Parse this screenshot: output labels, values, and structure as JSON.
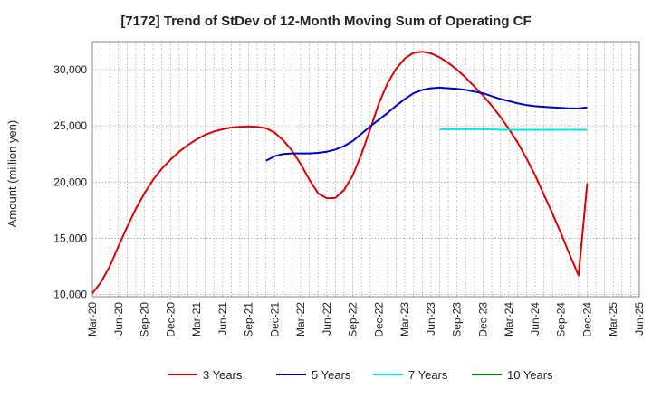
{
  "chart_data": {
    "type": "line",
    "title": "[7172]  Trend of StDev of 12-Month Moving Sum of Operating CF",
    "xlabel": "",
    "ylabel": "Amount (million yen)",
    "ylim": [
      9800,
      32500
    ],
    "yticks": [
      10000,
      15000,
      20000,
      25000,
      30000
    ],
    "ytick_labels": [
      "10,000",
      "15,000",
      "20,000",
      "25,000",
      "30,000"
    ],
    "x_tick_labels": [
      "Mar-20",
      "Jun-20",
      "Sep-20",
      "Dec-20",
      "Mar-21",
      "Jun-21",
      "Sep-21",
      "Dec-21",
      "Mar-22",
      "Jun-22",
      "Sep-22",
      "Dec-22",
      "Mar-23",
      "Jun-23",
      "Sep-23",
      "Dec-23",
      "Mar-24",
      "Jun-24",
      "Sep-24",
      "Dec-24",
      "Mar-25",
      "Jun-25"
    ],
    "x_range_months": [
      0,
      63
    ],
    "grid": true,
    "legend_position": "bottom",
    "series": [
      {
        "name": "3 Years",
        "color": "#e00000",
        "x": [
          0,
          1,
          2,
          3,
          4,
          5,
          6,
          7,
          8,
          9,
          10,
          11,
          12,
          13,
          14,
          15,
          16,
          17,
          18,
          19,
          20,
          21,
          22,
          23,
          24,
          25,
          26,
          27,
          28,
          29,
          30,
          31,
          32,
          33,
          34,
          35,
          36,
          37,
          38,
          39,
          40,
          41,
          42,
          43,
          44,
          45,
          46,
          47,
          48,
          49,
          50,
          51,
          52,
          53,
          54,
          55,
          56,
          57
        ],
        "values": [
          10100,
          11100,
          12500,
          14300,
          16000,
          17600,
          19000,
          20200,
          21200,
          22000,
          22700,
          23300,
          23800,
          24200,
          24500,
          24700,
          24850,
          24920,
          24950,
          24900,
          24800,
          24400,
          23700,
          22800,
          21600,
          20200,
          19000,
          18550,
          18600,
          19300,
          20600,
          22500,
          24700,
          27000,
          28800,
          30100,
          31000,
          31500,
          31600,
          31450,
          31100,
          30600,
          30000,
          29300,
          28500,
          27700,
          26800,
          25800,
          24700,
          23500,
          22100,
          20600,
          18900,
          17200,
          15400,
          13500,
          11700,
          19900
        ]
      },
      {
        "name": "5 Years",
        "color": "#0000cc",
        "x": [
          20,
          21,
          22,
          23,
          24,
          25,
          26,
          27,
          28,
          29,
          30,
          31,
          32,
          33,
          34,
          35,
          36,
          37,
          38,
          39,
          40,
          41,
          42,
          43,
          44,
          45,
          46,
          47,
          48,
          49,
          50,
          51,
          52,
          53,
          54,
          55,
          56,
          57
        ],
        "values": [
          21900,
          22300,
          22500,
          22550,
          22550,
          22550,
          22600,
          22700,
          22900,
          23200,
          23650,
          24300,
          24950,
          25550,
          26150,
          26800,
          27400,
          27900,
          28200,
          28350,
          28400,
          28350,
          28300,
          28200,
          28050,
          27900,
          27650,
          27400,
          27200,
          27000,
          26850,
          26750,
          26700,
          26650,
          26600,
          26550,
          26550,
          26650
        ]
      },
      {
        "name": "7 Years",
        "color": "#00e5ee",
        "x": [
          40,
          41,
          42,
          43,
          44,
          45,
          46,
          47,
          48,
          49,
          50,
          51,
          52,
          53,
          54,
          55,
          56,
          57
        ],
        "values": [
          24700,
          24700,
          24700,
          24700,
          24700,
          24700,
          24700,
          24650,
          24650,
          24650,
          24650,
          24650,
          24650,
          24650,
          24650,
          24650,
          24650,
          24650
        ]
      },
      {
        "name": "10 Years",
        "color": "#008000",
        "x": [],
        "values": []
      }
    ]
  }
}
